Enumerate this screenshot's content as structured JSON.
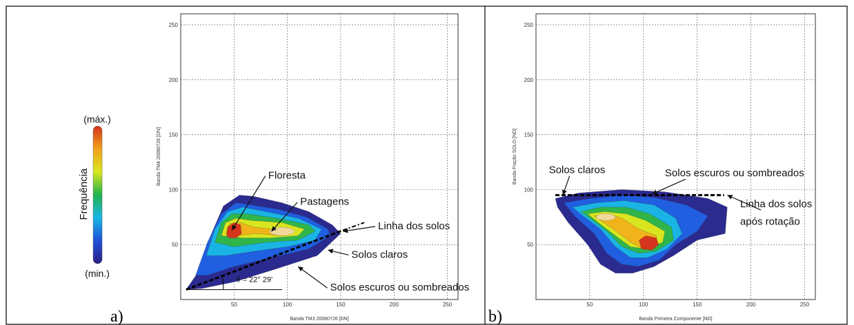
{
  "colorbar": {
    "max_label": "(máx.)",
    "min_label": "(min.)",
    "title": "Frequência",
    "colors": [
      "#2a1f86",
      "#1f4fd6",
      "#18b6e6",
      "#22b24c",
      "#d8e61e",
      "#f1a21a",
      "#d2331c"
    ]
  },
  "chart_data": [
    {
      "type": "heatmap",
      "panel_label": "a)",
      "xlabel": "Banda TM3 20080726 [DN]",
      "ylabel": "Banda TM4 20080726 [DN]",
      "xlim": [
        0,
        260
      ],
      "ylim": [
        0,
        260
      ],
      "xticks": [
        50,
        100,
        150,
        200,
        250
      ],
      "yticks": [
        50,
        100,
        150,
        200,
        250
      ],
      "grid": true,
      "density_peaks": [
        {
          "x": 48,
          "y": 63,
          "level": "max"
        },
        {
          "x": 95,
          "y": 62,
          "level": "high"
        }
      ],
      "soil_line": {
        "x": [
          5,
          152
        ],
        "y": [
          9,
          63
        ]
      },
      "angle_label": "θ = 22° 29'",
      "annotations": [
        {
          "text": "Floresta",
          "x": 82,
          "y": 110,
          "target": [
            48,
            63
          ]
        },
        {
          "text": "Pastagens",
          "x": 112,
          "y": 86,
          "target": [
            85,
            62
          ]
        },
        {
          "text": "Linha dos solos",
          "x": 185,
          "y": 64,
          "target": [
            152,
            62
          ]
        },
        {
          "text": "Solos claros",
          "x": 160,
          "y": 38,
          "target": [
            138,
            45
          ]
        },
        {
          "text": "Solos escuros ou sombreados",
          "x": 140,
          "y": 8,
          "target": [
            110,
            30
          ]
        }
      ]
    },
    {
      "type": "heatmap",
      "panel_label": "b)",
      "xlabel": "Banda Primeira Componente [ND]",
      "ylabel": "Banda Fração SOLO [ND]",
      "xlim": [
        0,
        260
      ],
      "ylim": [
        0,
        260
      ],
      "xticks": [
        50,
        100,
        150,
        200,
        250
      ],
      "yticks": [
        50,
        100,
        150,
        200,
        250
      ],
      "grid": true,
      "density_peaks": [
        {
          "x": 105,
          "y": 52,
          "level": "max"
        },
        {
          "x": 65,
          "y": 75,
          "level": "high"
        }
      ],
      "soil_line": {
        "x": [
          18,
          175
        ],
        "y": [
          95,
          95
        ]
      },
      "annotations": [
        {
          "text": "Solos claros",
          "x": 12,
          "y": 115,
          "target": [
            25,
            95
          ]
        },
        {
          "text": "Solos escuros ou sombreados",
          "x": 120,
          "y": 112,
          "target": [
            108,
            96
          ]
        },
        {
          "text": "Linha dos solos",
          "x": 190,
          "y": 84,
          "target": [
            178,
            95
          ]
        },
        {
          "text": "após rotação",
          "x": 190,
          "y": 68
        }
      ]
    }
  ]
}
